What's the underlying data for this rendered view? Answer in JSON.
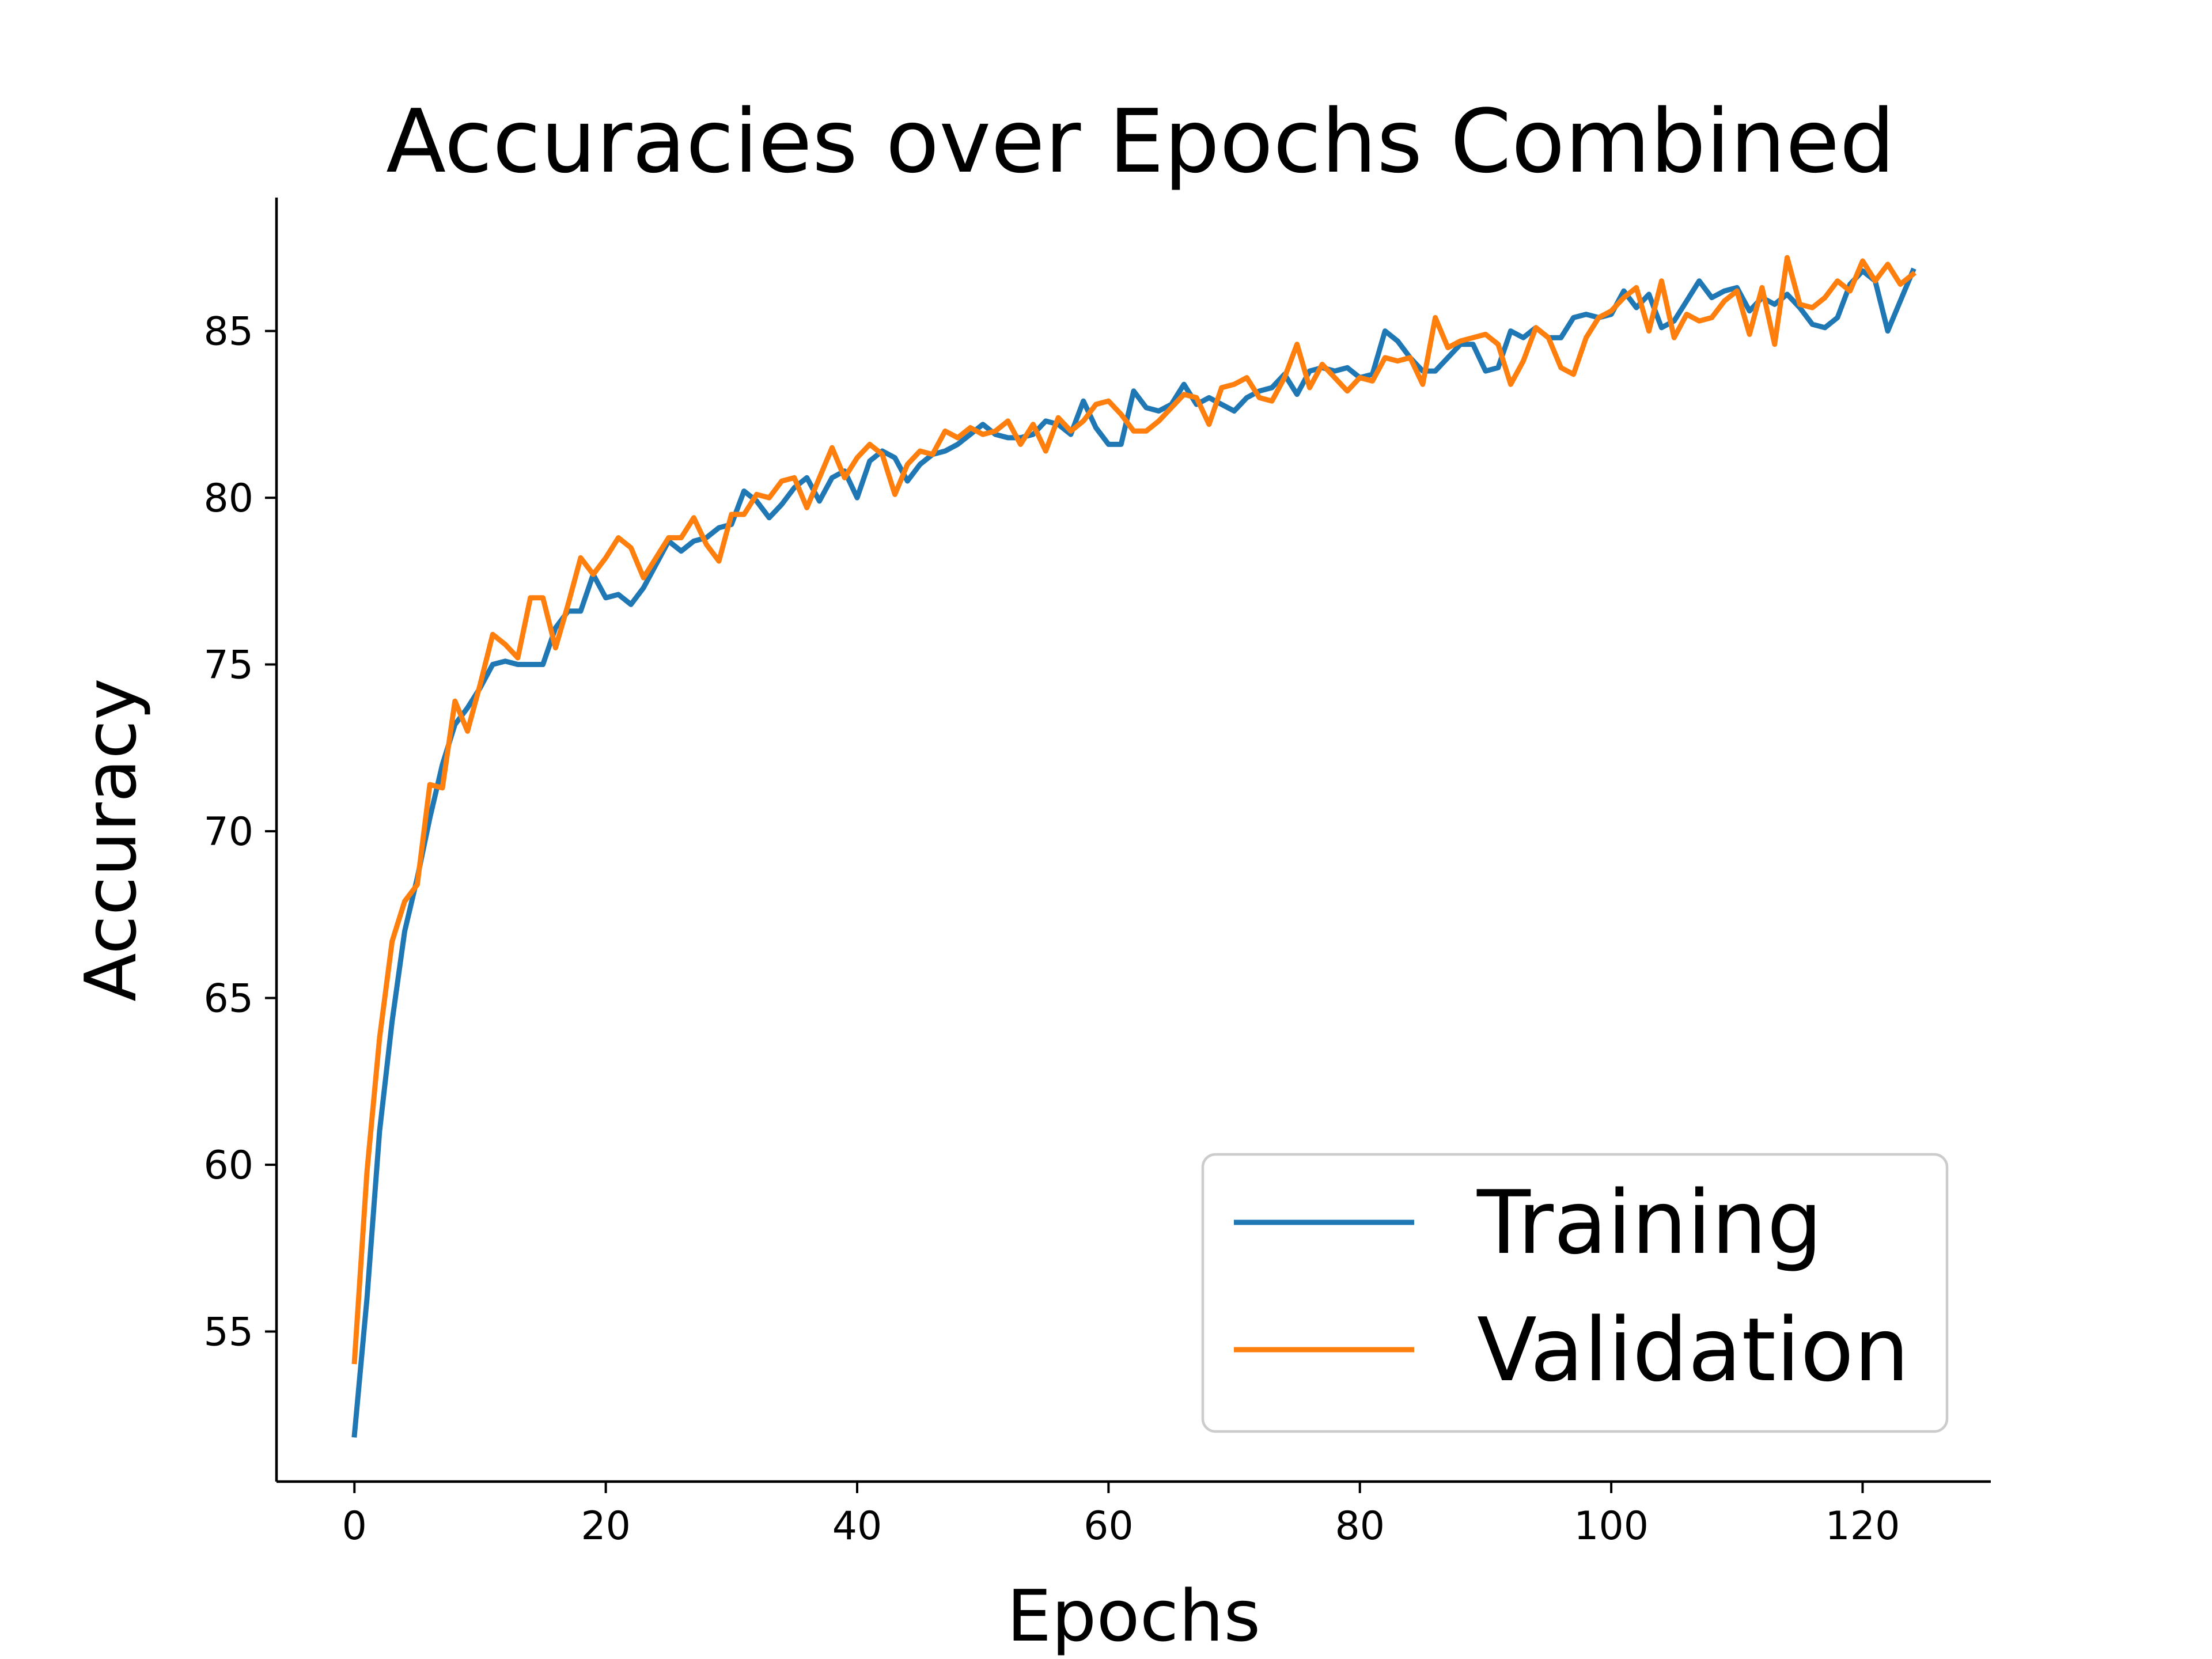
{
  "chart_data": {
    "type": "line",
    "title": "Accuracies over Epochs Combined",
    "xlabel": "Epochs",
    "ylabel": "Accuracy",
    "xlim": [
      -6.2,
      130.2
    ],
    "ylim": [
      50.5,
      89.0
    ],
    "xticks": [
      "0",
      "20",
      "40",
      "60",
      "80",
      "100",
      "120"
    ],
    "yticks": [
      "55",
      "60",
      "65",
      "70",
      "75",
      "80",
      "85"
    ],
    "grid": false,
    "legend_position": "lower-right",
    "x": [
      0,
      1,
      2,
      3,
      4,
      5,
      6,
      7,
      8,
      9,
      10,
      11,
      12,
      13,
      14,
      15,
      16,
      17,
      18,
      19,
      20,
      21,
      22,
      23,
      24,
      25,
      26,
      27,
      28,
      29,
      30,
      31,
      32,
      33,
      34,
      35,
      36,
      37,
      38,
      39,
      40,
      41,
      42,
      43,
      44,
      45,
      46,
      47,
      48,
      49,
      50,
      51,
      52,
      53,
      54,
      55,
      56,
      57,
      58,
      59,
      60,
      61,
      62,
      63,
      64,
      65,
      66,
      67,
      68,
      69,
      70,
      71,
      72,
      73,
      74,
      75,
      76,
      77,
      78,
      79,
      80,
      81,
      82,
      83,
      84,
      85,
      86,
      87,
      88,
      89,
      90,
      91,
      92,
      93,
      94,
      95,
      96,
      97,
      98,
      99,
      100,
      101,
      102,
      103,
      104,
      105,
      106,
      107,
      108,
      109,
      110,
      111,
      112,
      113,
      114,
      115,
      116,
      117,
      118,
      119,
      120,
      121,
      122,
      123,
      124
    ],
    "series": [
      {
        "name": "Training",
        "color": "#1f77b4",
        "values": [
          51.9,
          56.0,
          61.0,
          64.3,
          67.0,
          68.6,
          70.4,
          72.0,
          73.2,
          73.7,
          74.3,
          75.0,
          75.1,
          75.0,
          75.0,
          75.0,
          76.1,
          76.6,
          76.6,
          77.7,
          77.0,
          77.1,
          76.8,
          77.3,
          78.0,
          78.7,
          78.4,
          78.7,
          78.8,
          79.1,
          79.2,
          80.2,
          79.9,
          79.4,
          79.8,
          80.3,
          80.6,
          79.9,
          80.6,
          80.8,
          80.0,
          81.1,
          81.4,
          81.2,
          80.5,
          81.0,
          81.3,
          81.4,
          81.6,
          81.9,
          82.2,
          81.9,
          81.8,
          81.8,
          81.9,
          82.3,
          82.2,
          81.9,
          82.9,
          82.1,
          81.6,
          81.6,
          83.2,
          82.7,
          82.6,
          82.8,
          83.4,
          82.8,
          83.0,
          82.8,
          82.6,
          83.0,
          83.2,
          83.3,
          83.7,
          83.1,
          83.8,
          83.9,
          83.8,
          83.9,
          83.6,
          83.7,
          85.0,
          84.7,
          84.2,
          83.8,
          83.8,
          84.2,
          84.6,
          84.6,
          83.8,
          83.9,
          85.0,
          84.8,
          85.1,
          84.8,
          84.8,
          85.4,
          85.5,
          85.4,
          85.5,
          86.2,
          85.7,
          86.1,
          85.1,
          85.3,
          85.9,
          86.5,
          86.0,
          86.2,
          86.3,
          85.6,
          86.0,
          85.8,
          86.1,
          85.7,
          85.2,
          85.1,
          85.4,
          86.4,
          86.8,
          86.5,
          85.0,
          85.9,
          86.8
        ]
      },
      {
        "name": "Validation",
        "color": "#ff7f0e",
        "values": [
          54.1,
          59.8,
          63.8,
          66.7,
          67.9,
          68.4,
          71.4,
          71.3,
          73.9,
          73.0,
          74.4,
          75.9,
          75.6,
          75.2,
          77.0,
          77.0,
          75.5,
          76.8,
          78.2,
          77.7,
          78.2,
          78.8,
          78.5,
          77.6,
          78.2,
          78.8,
          78.8,
          79.4,
          78.6,
          78.1,
          79.5,
          79.5,
          80.1,
          80.0,
          80.5,
          80.6,
          79.7,
          80.6,
          81.5,
          80.6,
          81.2,
          81.6,
          81.3,
          80.1,
          81.0,
          81.4,
          81.3,
          82.0,
          81.8,
          82.1,
          81.9,
          82.0,
          82.3,
          81.6,
          82.2,
          81.4,
          82.4,
          82.0,
          82.3,
          82.8,
          82.9,
          82.5,
          82.0,
          82.0,
          82.3,
          82.7,
          83.1,
          83.0,
          82.2,
          83.3,
          83.4,
          83.6,
          83.0,
          82.9,
          83.6,
          84.6,
          83.3,
          84.0,
          83.6,
          83.2,
          83.6,
          83.5,
          84.2,
          84.1,
          84.2,
          83.4,
          85.4,
          84.5,
          84.7,
          84.8,
          84.9,
          84.6,
          83.4,
          84.1,
          85.1,
          84.8,
          83.9,
          83.7,
          84.8,
          85.4,
          85.6,
          86.0,
          86.3,
          85.0,
          86.5,
          84.8,
          85.5,
          85.3,
          85.4,
          85.9,
          86.2,
          84.9,
          86.3,
          84.6,
          87.2,
          85.8,
          85.7,
          86.0,
          86.5,
          86.2,
          87.1,
          86.5,
          87.0,
          86.4,
          86.7
        ]
      }
    ]
  }
}
